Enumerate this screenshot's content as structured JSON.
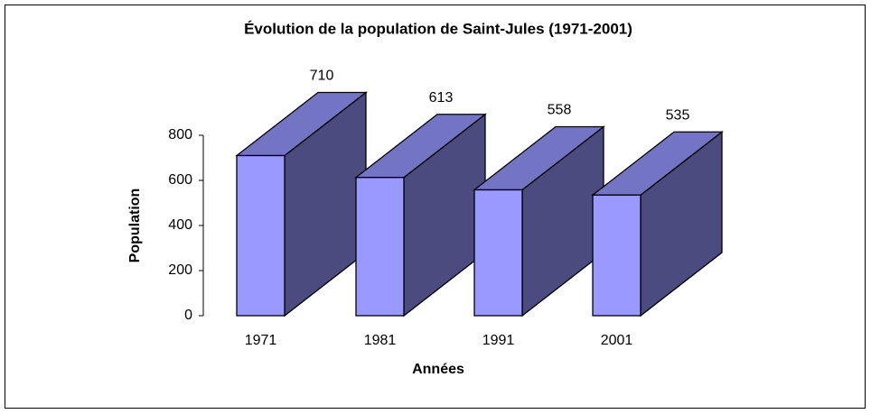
{
  "chart_data": {
    "type": "bar3d",
    "title": "Évolution de la population de Saint-Jules (1971-2001)",
    "x_label": "Années",
    "y_label": "Population",
    "categories": [
      "1971",
      "1981",
      "1991",
      "2001"
    ],
    "values": [
      710,
      613,
      558,
      535
    ],
    "color": "#9999ff",
    "top_color": "#7474c4",
    "side_color": "#4b4b80",
    "ylim": [
      0,
      800
    ],
    "yticks": [
      0,
      200,
      400,
      600,
      800
    ]
  }
}
